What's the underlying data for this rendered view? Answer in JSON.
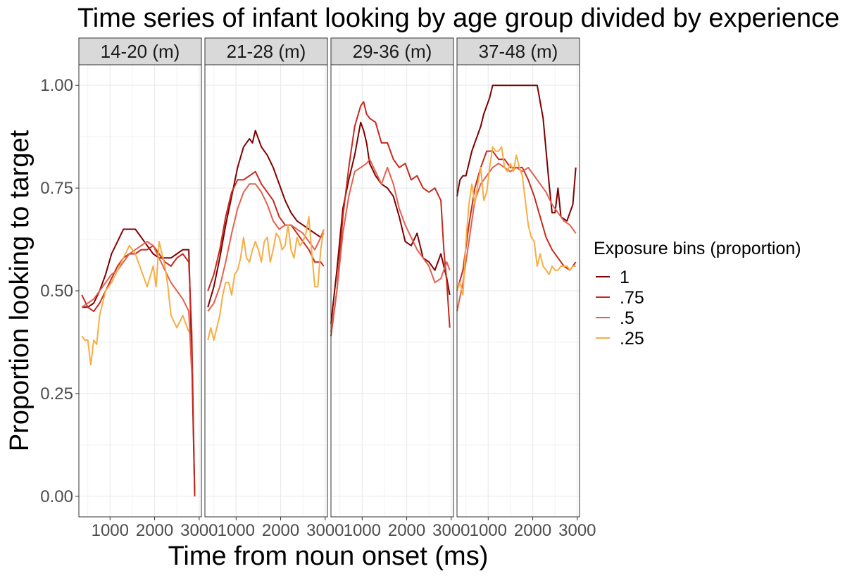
{
  "chart_data": {
    "type": "line",
    "title": "Time series of infant looking by age group divided by experience",
    "xlabel": "Time from noun onset (ms)",
    "ylabel": "Proportion looking to target",
    "xlim": [
      300,
      3050
    ],
    "ylim": [
      -0.05,
      1.05
    ],
    "x_ticks": [
      1000,
      2000,
      3000
    ],
    "x_tick_labels": [
      "1000",
      "2000",
      "3000"
    ],
    "y_ticks": [
      0,
      0.25,
      0.5,
      0.75,
      1
    ],
    "y_tick_labels": [
      "0.00",
      "0.25",
      "0.50",
      "0.75",
      "1.00"
    ],
    "grid": true,
    "legend": {
      "title": "Exposure bins (proportion)",
      "placement": "right",
      "entries": [
        {
          "label": "1",
          "color": "#7f0000"
        },
        {
          "label": ".75",
          "color": "#c62a1e"
        },
        {
          "label": ".5",
          "color": "#e3604f"
        },
        {
          "label": ".25",
          "color": "#f7ad43"
        }
      ]
    },
    "panels": [
      {
        "label": "14-20 (m)",
        "series": [
          {
            "name": "1",
            "color": "#7f0000",
            "x": [
              367,
              500,
              633,
              767,
              900,
              1033,
              1167,
              1300,
              1433,
              1567,
              1700,
              1833,
              1967,
              2100,
              2233,
              2367,
              2500,
              2633,
              2767,
              2833,
              2900
            ],
            "values": [
              0.46,
              0.46,
              0.47,
              0.5,
              0.54,
              0.59,
              0.62,
              0.65,
              0.65,
              0.65,
              0.63,
              0.61,
              0.59,
              0.58,
              0.58,
              0.58,
              0.59,
              0.6,
              0.6,
              0.35,
              0.0
            ]
          },
          {
            "name": ".75",
            "color": "#c62a1e",
            "x": [
              367,
              500,
              633,
              767,
              900,
              1033,
              1167,
              1300,
              1433,
              1567,
              1700,
              1833,
              1967,
              2100,
              2233,
              2367,
              2500,
              2633,
              2767,
              2833,
              2900
            ],
            "values": [
              0.49,
              0.46,
              0.45,
              0.47,
              0.5,
              0.53,
              0.56,
              0.58,
              0.59,
              0.59,
              0.6,
              0.6,
              0.61,
              0.59,
              0.57,
              0.56,
              0.58,
              0.59,
              0.57,
              0.4,
              0.0
            ]
          },
          {
            "name": ".5",
            "color": "#e3604f",
            "x": [
              367,
              500,
              633,
              767,
              900,
              1033,
              1167,
              1300,
              1433,
              1567,
              1700,
              1833,
              1967,
              2100,
              2233,
              2367,
              2500,
              2633,
              2767,
              2833
            ],
            "values": [
              0.46,
              0.47,
              0.48,
              0.5,
              0.52,
              0.54,
              0.55,
              0.57,
              0.59,
              0.6,
              0.61,
              0.62,
              0.61,
              0.58,
              0.55,
              0.52,
              0.5,
              0.48,
              0.45,
              0.3
            ]
          },
          {
            "name": ".25",
            "color": "#f7ad43",
            "x": [
              367,
              433,
              500,
              567,
              633,
              700,
              767,
              900,
              1033,
              1167,
              1300,
              1433,
              1567,
              1700,
              1833,
              1967,
              2033,
              2100,
              2167,
              2233,
              2300,
              2367,
              2500,
              2633,
              2767
            ],
            "values": [
              0.39,
              0.38,
              0.38,
              0.32,
              0.38,
              0.37,
              0.44,
              0.5,
              0.52,
              0.55,
              0.58,
              0.61,
              0.59,
              0.55,
              0.51,
              0.56,
              0.51,
              0.62,
              0.59,
              0.56,
              0.51,
              0.44,
              0.41,
              0.44,
              0.4
            ]
          }
        ]
      },
      {
        "label": "21-28 (m)",
        "series": [
          {
            "name": "1",
            "color": "#7f0000",
            "x": [
              367,
              500,
              633,
              767,
              900,
              1033,
              1167,
              1300,
              1367,
              1433,
              1567,
              1700,
              1833,
              1967,
              2100,
              2233,
              2367,
              2500,
              2633,
              2767,
              2900,
              2967
            ],
            "values": [
              0.46,
              0.51,
              0.58,
              0.66,
              0.73,
              0.8,
              0.85,
              0.87,
              0.86,
              0.89,
              0.85,
              0.83,
              0.8,
              0.76,
              0.72,
              0.69,
              0.67,
              0.66,
              0.65,
              0.64,
              0.63,
              0.64
            ]
          },
          {
            "name": ".75",
            "color": "#c62a1e",
            "x": [
              367,
              500,
              633,
              767,
              900,
              1033,
              1167,
              1300,
              1433,
              1567,
              1700,
              1833,
              1967,
              2100,
              2233,
              2367,
              2500,
              2633,
              2767,
              2900,
              2967
            ],
            "values": [
              0.5,
              0.54,
              0.6,
              0.68,
              0.74,
              0.77,
              0.77,
              0.78,
              0.79,
              0.76,
              0.74,
              0.72,
              0.68,
              0.66,
              0.66,
              0.64,
              0.62,
              0.6,
              0.57,
              0.57,
              0.56
            ]
          },
          {
            "name": ".5",
            "color": "#e3604f",
            "x": [
              367,
              500,
              633,
              767,
              900,
              1033,
              1167,
              1300,
              1433,
              1567,
              1700,
              1833,
              1967,
              2100,
              2233,
              2367,
              2500,
              2633,
              2767,
              2900,
              2967
            ],
            "values": [
              0.45,
              0.47,
              0.51,
              0.57,
              0.64,
              0.7,
              0.74,
              0.76,
              0.76,
              0.74,
              0.71,
              0.67,
              0.65,
              0.66,
              0.66,
              0.65,
              0.64,
              0.62,
              0.6,
              0.63,
              0.65
            ]
          },
          {
            "name": ".25",
            "color": "#f7ad43",
            "x": [
              367,
              433,
              500,
              567,
              633,
              700,
              767,
              833,
              900,
              967,
              1033,
              1100,
              1167,
              1233,
              1300,
              1367,
              1433,
              1500,
              1567,
              1633,
              1700,
              1767,
              1833,
              1900,
              1967,
              2033,
              2100,
              2167,
              2233,
              2300,
              2367,
              2433,
              2500,
              2567,
              2633,
              2700,
              2767,
              2833,
              2900,
              2967
            ],
            "values": [
              0.38,
              0.41,
              0.38,
              0.41,
              0.44,
              0.49,
              0.52,
              0.52,
              0.49,
              0.54,
              0.55,
              0.58,
              0.63,
              0.58,
              0.57,
              0.6,
              0.62,
              0.6,
              0.57,
              0.62,
              0.63,
              0.57,
              0.6,
              0.64,
              0.63,
              0.6,
              0.61,
              0.66,
              0.6,
              0.58,
              0.63,
              0.61,
              0.62,
              0.64,
              0.68,
              0.59,
              0.51,
              0.51,
              0.6,
              0.65
            ]
          }
        ]
      },
      {
        "label": "29-36 (m)",
        "series": [
          {
            "name": "1",
            "color": "#7f0000",
            "x": [
              300,
              433,
              567,
              700,
              833,
              967,
              1033,
              1100,
              1167,
              1300,
              1433,
              1567,
              1700,
              1833,
              1967,
              2100,
              2233,
              2367,
              2500,
              2633,
              2767,
              2900,
              2967
            ],
            "values": [
              0.42,
              0.55,
              0.7,
              0.77,
              0.83,
              0.91,
              0.89,
              0.86,
              0.81,
              0.78,
              0.76,
              0.75,
              0.73,
              0.68,
              0.62,
              0.61,
              0.64,
              0.58,
              0.57,
              0.55,
              0.59,
              0.53,
              0.49
            ]
          },
          {
            "name": ".75",
            "color": "#c62a1e",
            "x": [
              300,
              433,
              567,
              700,
              833,
              967,
              1033,
              1100,
              1167,
              1300,
              1433,
              1567,
              1700,
              1833,
              1967,
              2100,
              2233,
              2367,
              2500,
              2633,
              2767,
              2833,
              2900,
              2967
            ],
            "values": [
              0.39,
              0.5,
              0.68,
              0.8,
              0.9,
              0.95,
              0.96,
              0.93,
              0.92,
              0.91,
              0.86,
              0.86,
              0.82,
              0.8,
              0.81,
              0.77,
              0.78,
              0.75,
              0.74,
              0.75,
              0.72,
              0.6,
              0.52,
              0.41
            ]
          },
          {
            "name": ".5",
            "color": "#e3604f",
            "x": [
              300,
              433,
              567,
              700,
              833,
              967,
              1100,
              1167,
              1300,
              1433,
              1567,
              1700,
              1833,
              1967,
              2100,
              2233,
              2367,
              2500,
              2633,
              2767,
              2900,
              2967
            ],
            "values": [
              0.4,
              0.5,
              0.64,
              0.73,
              0.79,
              0.8,
              0.81,
              0.82,
              0.79,
              0.76,
              0.8,
              0.76,
              0.7,
              0.66,
              0.63,
              0.6,
              0.58,
              0.56,
              0.52,
              0.53,
              0.57,
              0.55
            ]
          }
        ]
      },
      {
        "label": "37-48 (m)",
        "series": [
          {
            "name": "1",
            "color": "#7f0000",
            "x": [
              300,
              367,
              433,
              500,
              633,
              767,
              833,
              900,
              1033,
              1100,
              1167,
              1300,
              1433,
              1567,
              1700,
              1833,
              1967,
              2033,
              2100,
              2233,
              2367,
              2433,
              2500,
              2567,
              2633,
              2767,
              2900,
              2967
            ],
            "values": [
              0.73,
              0.77,
              0.78,
              0.78,
              0.84,
              0.88,
              0.9,
              0.93,
              0.97,
              1.0,
              1.0,
              1.0,
              1.0,
              1.0,
              1.0,
              1.0,
              1.0,
              1.0,
              1.0,
              0.92,
              0.76,
              0.69,
              0.69,
              0.75,
              0.68,
              0.67,
              0.71,
              0.8
            ]
          },
          {
            "name": ".75",
            "color": "#c62a1e",
            "x": [
              300,
              433,
              567,
              700,
              833,
              967,
              1100,
              1233,
              1367,
              1500,
              1633,
              1767,
              1900,
              2033,
              2167,
              2300,
              2433,
              2567,
              2700,
              2833,
              2967
            ],
            "values": [
              0.5,
              0.55,
              0.66,
              0.75,
              0.8,
              0.84,
              0.84,
              0.82,
              0.82,
              0.8,
              0.8,
              0.8,
              0.77,
              0.73,
              0.68,
              0.63,
              0.6,
              0.58,
              0.56,
              0.55,
              0.57
            ]
          },
          {
            "name": ".5",
            "color": "#e3604f",
            "x": [
              300,
              433,
              567,
              700,
              833,
              967,
              1100,
              1233,
              1367,
              1500,
              1633,
              1767,
              1900,
              2033,
              2167,
              2300,
              2433,
              2567,
              2700,
              2833,
              2967
            ],
            "values": [
              0.45,
              0.52,
              0.62,
              0.72,
              0.76,
              0.78,
              0.8,
              0.81,
              0.8,
              0.79,
              0.8,
              0.79,
              0.8,
              0.78,
              0.76,
              0.74,
              0.71,
              0.69,
              0.67,
              0.66,
              0.64
            ]
          },
          {
            "name": ".25",
            "color": "#f7ad43",
            "x": [
              300,
              367,
              433,
              500,
              567,
              633,
              700,
              767,
              833,
              900,
              967,
              1033,
              1100,
              1167,
              1233,
              1300,
              1367,
              1433,
              1500,
              1567,
              1633,
              1700,
              1767,
              1833,
              1900,
              1967,
              2033,
              2100,
              2167,
              2233,
              2300,
              2367,
              2433,
              2500,
              2567,
              2633,
              2700,
              2767,
              2833,
              2900,
              2967
            ],
            "values": [
              0.5,
              0.52,
              0.49,
              0.62,
              0.71,
              0.76,
              0.71,
              0.76,
              0.8,
              0.72,
              0.74,
              0.8,
              0.85,
              0.84,
              0.84,
              0.85,
              0.8,
              0.79,
              0.81,
              0.79,
              0.83,
              0.8,
              0.78,
              0.72,
              0.66,
              0.63,
              0.62,
              0.56,
              0.59,
              0.56,
              0.55,
              0.54,
              0.56,
              0.55,
              0.55,
              0.56,
              0.56,
              0.56,
              0.55,
              0.56,
              0.56
            ]
          }
        ]
      }
    ]
  }
}
